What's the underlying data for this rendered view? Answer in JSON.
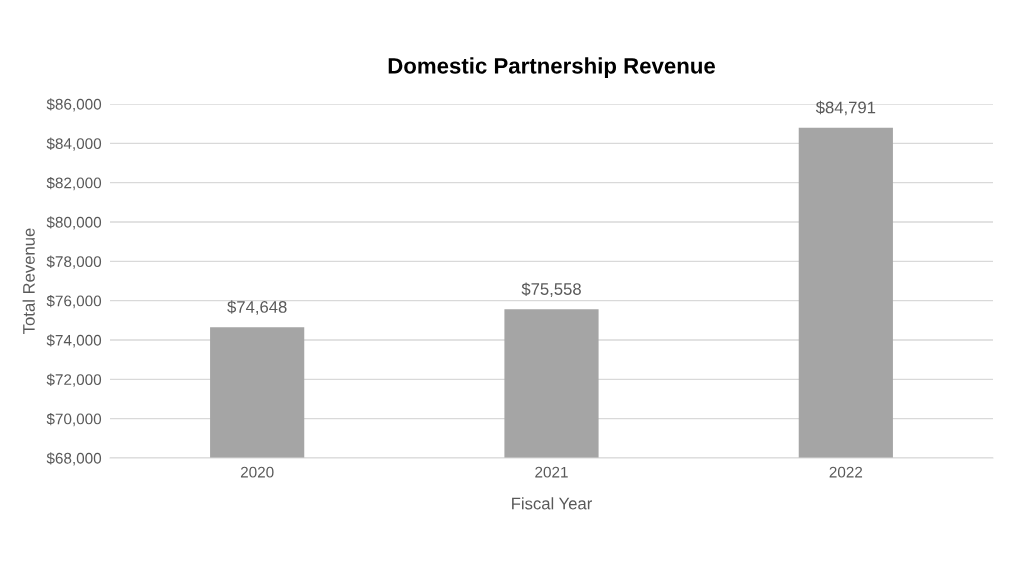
{
  "chart_data": {
    "type": "bar",
    "title": "Domestic Partnership Revenue",
    "xlabel": "Fiscal Year",
    "ylabel": "Total Revenue",
    "categories": [
      "2020",
      "2021",
      "2022"
    ],
    "values": [
      74648,
      75558,
      84791
    ],
    "value_labels": [
      "$74,648",
      "$75,558",
      "$84,791"
    ],
    "color": "#a5a5a5",
    "ylim": [
      68000,
      86000
    ],
    "yticks": [
      {
        "value": 68000,
        "label": "$68,000"
      },
      {
        "value": 70000,
        "label": "$70,000"
      },
      {
        "value": 72000,
        "label": "$72,000"
      },
      {
        "value": 74000,
        "label": "$74,000"
      },
      {
        "value": 76000,
        "label": "$76,000"
      },
      {
        "value": 78000,
        "label": "$78,000"
      },
      {
        "value": 80000,
        "label": "$80,000"
      },
      {
        "value": 82000,
        "label": "$82,000"
      },
      {
        "value": 84000,
        "label": "$84,000"
      },
      {
        "value": 86000,
        "label": "$86,000"
      }
    ],
    "grid": "y",
    "legend": false
  }
}
